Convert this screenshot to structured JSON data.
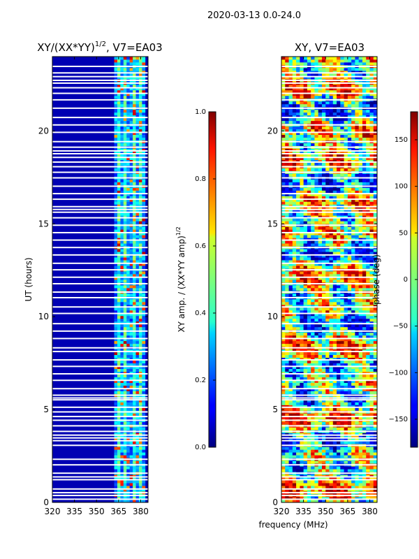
{
  "suptitle": "2020-03-13 0.0-24.0",
  "xlabel": "frequency (MHz)",
  "chart_data": [
    {
      "type": "heatmap",
      "title_main": "XY/(XX*YY)",
      "title_sup": "1/2",
      "title_tail": ", V7=EA03",
      "ylabel": "UT (hours)",
      "xlim": [
        320,
        385
      ],
      "ylim": [
        0,
        24
      ],
      "xticks": [
        320,
        335,
        350,
        365,
        380
      ],
      "yticks": [
        0,
        5,
        10,
        15,
        20
      ],
      "grid": false,
      "colorbar": {
        "label_main": "XY amp. / (XX*YY amp)",
        "label_sup": "1/2",
        "range": [
          0.0,
          1.0
        ],
        "ticks": [
          "0.0",
          "0.2",
          "0.4",
          "0.6",
          "0.8",
          "1.0"
        ],
        "tick_values": [
          0.0,
          0.2,
          0.4,
          0.6,
          0.8,
          1.0
        ],
        "colormap": "jet"
      },
      "description_values": {
        "background_level": 0.05,
        "high_band_freq_range": [
          362,
          383
        ],
        "high_band_level": 0.55
      }
    },
    {
      "type": "heatmap",
      "title_main": "XY, V7=EA03",
      "title_sup": "",
      "title_tail": "",
      "ylabel": "",
      "xlim": [
        320,
        385
      ],
      "ylim": [
        0,
        24
      ],
      "xticks": [
        320,
        335,
        350,
        365,
        380
      ],
      "yticks": [
        0,
        5,
        10,
        15,
        20
      ],
      "grid": false,
      "colorbar": {
        "label_main": "phase (deg)",
        "label_sup": "",
        "range": [
          -180,
          180
        ],
        "ticks": [
          "−150",
          "−100",
          "−50",
          "0",
          "50",
          "100",
          "150"
        ],
        "tick_values": [
          -150,
          -100,
          -50,
          0,
          50,
          100,
          150
        ],
        "colormap": "jet"
      }
    }
  ],
  "flagged_rows_hours": [
    0.15,
    0.35,
    0.5,
    0.7,
    1.2,
    1.35,
    1.55,
    2.0,
    2.3,
    3.05,
    3.3,
    3.45,
    3.6,
    3.8,
    4.1,
    4.4,
    4.6,
    4.85,
    5.1,
    5.5,
    5.6,
    5.75,
    6.1,
    6.55,
    6.9,
    7.3,
    7.65,
    8.1,
    8.3,
    8.8,
    9.2,
    9.6,
    10.15,
    10.5,
    11.0,
    11.3,
    11.75,
    12.1,
    12.5,
    12.85,
    13.3,
    13.7,
    14.1,
    14.5,
    14.9,
    15.3,
    15.6,
    15.75,
    15.9,
    16.3,
    16.6,
    17.0,
    17.45,
    17.75,
    18.05,
    18.3,
    18.55,
    18.75,
    18.9,
    19.1,
    19.4,
    19.9,
    20.3,
    20.7,
    21.2,
    21.65,
    22.0,
    22.3,
    22.55,
    22.7,
    22.9,
    23.1,
    23.45
  ]
}
